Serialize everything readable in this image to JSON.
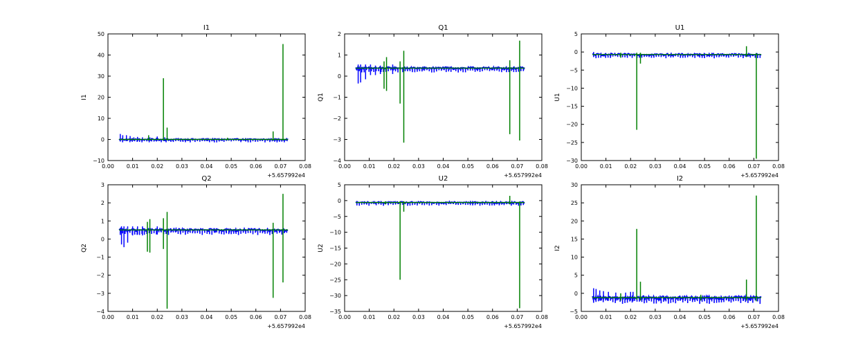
{
  "figure": {
    "background": "#ffffff",
    "colors": {
      "series_1": "#0000ff",
      "series_2": "#008000",
      "axes": "#000000"
    }
  },
  "chart_data": [
    {
      "type": "line",
      "title": "I1",
      "ylabel": "I1",
      "xlabel": "",
      "x_offset_label": "+5.657992e4",
      "xlim": [
        0.0,
        0.08
      ],
      "ylim": [
        -10,
        50
      ],
      "xticks": [
        "0.00",
        "0.01",
        "0.02",
        "0.03",
        "0.04",
        "0.05",
        "0.06",
        "0.07",
        "0.08"
      ],
      "yticks": [
        "−10",
        "0",
        "10",
        "20",
        "30",
        "40",
        "50"
      ],
      "grid": false,
      "series": [
        {
          "color": "#0000ff",
          "x": [
            0.0045,
            0.073
          ],
          "baseline": 0.0,
          "noise": 0.4,
          "spikes": [
            [
              0.005,
              2.6,
              -1.0
            ],
            [
              0.006,
              2.0,
              -0.8
            ],
            [
              0.0075,
              2.0,
              -0.8
            ],
            [
              0.009,
              1.6,
              -0.6
            ],
            [
              0.0105,
              1.0,
              -0.6
            ],
            [
              0.012,
              1.2,
              -0.8
            ],
            [
              0.014,
              1.0,
              -0.6
            ],
            [
              0.017,
              1.0,
              -0.6
            ],
            [
              0.02,
              1.4,
              -0.6
            ],
            [
              0.023,
              1.0,
              -0.8
            ]
          ]
        },
        {
          "color": "#008000",
          "x": [
            0.0045,
            0.073
          ],
          "baseline": 0.0,
          "spikes": [
            [
              0.0165,
              2.0,
              -0.5
            ],
            [
              0.0225,
              29.0,
              -0.5
            ],
            [
              0.024,
              5.6,
              -0.5
            ],
            [
              0.0485,
              0.8,
              -0.4
            ],
            [
              0.067,
              3.8,
              -0.5
            ],
            [
              0.071,
              45.2,
              -0.5
            ]
          ]
        }
      ]
    },
    {
      "type": "line",
      "title": "Q1",
      "ylabel": "Q1",
      "xlabel": "",
      "x_offset_label": "+5.657992e4",
      "xlim": [
        0.0,
        0.08
      ],
      "ylim": [
        -4,
        2
      ],
      "xticks": [
        "0.00",
        "0.01",
        "0.02",
        "0.03",
        "0.04",
        "0.05",
        "0.06",
        "0.07",
        "0.08"
      ],
      "yticks": [
        "−4",
        "−3",
        "−2",
        "−1",
        "0",
        "1",
        "2"
      ],
      "grid": false,
      "series": [
        {
          "color": "#0000ff",
          "x": [
            0.0045,
            0.073
          ],
          "baseline": 0.38,
          "noise": 0.06,
          "spikes": [
            [
              0.0055,
              0.55,
              -0.35
            ],
            [
              0.0065,
              0.55,
              -0.3
            ],
            [
              0.0085,
              0.55,
              -0.15
            ],
            [
              0.0105,
              0.55,
              0.05
            ],
            [
              0.0125,
              0.5,
              0.05
            ],
            [
              0.0145,
              0.5,
              0.1
            ],
            [
              0.0195,
              0.55,
              0.1
            ]
          ]
        },
        {
          "color": "#008000",
          "x": [
            0.0045,
            0.073
          ],
          "baseline": 0.38,
          "spikes": [
            [
              0.016,
              0.7,
              -0.6
            ],
            [
              0.017,
              0.9,
              -0.7
            ],
            [
              0.0225,
              0.7,
              -1.3
            ],
            [
              0.024,
              1.2,
              -3.15
            ],
            [
              0.067,
              0.75,
              -2.75
            ],
            [
              0.071,
              1.68,
              -3.05
            ]
          ]
        }
      ]
    },
    {
      "type": "line",
      "title": "U1",
      "ylabel": "U1",
      "xlabel": "",
      "x_offset_label": "+5.657992e4",
      "xlim": [
        0.0,
        0.08
      ],
      "ylim": [
        -30,
        5
      ],
      "xticks": [
        "0.00",
        "0.01",
        "0.02",
        "0.03",
        "0.04",
        "0.05",
        "0.06",
        "0.07",
        "0.08"
      ],
      "yticks": [
        "−30",
        "−25",
        "−20",
        "−15",
        "−10",
        "−5",
        "0",
        "5"
      ],
      "grid": false,
      "series": [
        {
          "color": "#0000ff",
          "x": [
            0.0045,
            0.073
          ],
          "baseline": -0.7,
          "noise": 0.3,
          "spikes": [
            [
              0.005,
              0.0,
              -1.4
            ],
            [
              0.008,
              -0.2,
              -1.2
            ],
            [
              0.012,
              -0.2,
              -1.2
            ]
          ]
        },
        {
          "color": "#008000",
          "x": [
            0.0045,
            0.073
          ],
          "baseline": -0.7,
          "spikes": [
            [
              0.016,
              -0.2,
              -1.6
            ],
            [
              0.0225,
              -0.2,
              -21.5
            ],
            [
              0.024,
              -0.2,
              -3.2
            ],
            [
              0.067,
              1.6,
              -1.4
            ],
            [
              0.071,
              -0.3,
              -29.5
            ]
          ]
        }
      ]
    },
    {
      "type": "line",
      "title": "Q2",
      "ylabel": "Q2",
      "xlabel": "",
      "x_offset_label": "+5.657992e4",
      "xlim": [
        0.0,
        0.08
      ],
      "ylim": [
        -4,
        3
      ],
      "xticks": [
        "0.00",
        "0.01",
        "0.02",
        "0.03",
        "0.04",
        "0.05",
        "0.06",
        "0.07",
        "0.08"
      ],
      "yticks": [
        "−4",
        "−3",
        "−2",
        "−1",
        "0",
        "1",
        "2",
        "3"
      ],
      "grid": false,
      "series": [
        {
          "color": "#0000ff",
          "x": [
            0.0045,
            0.073
          ],
          "baseline": 0.5,
          "noise": 0.08,
          "spikes": [
            [
              0.0055,
              0.7,
              -0.3
            ],
            [
              0.0065,
              0.7,
              -0.45
            ],
            [
              0.008,
              0.7,
              -0.2
            ],
            [
              0.01,
              0.7,
              0.2
            ],
            [
              0.012,
              0.7,
              0.25
            ],
            [
              0.014,
              0.7,
              0.2
            ],
            [
              0.02,
              0.7,
              0.25
            ]
          ]
        },
        {
          "color": "#008000",
          "x": [
            0.0045,
            0.073
          ],
          "baseline": 0.5,
          "spikes": [
            [
              0.016,
              0.95,
              -0.7
            ],
            [
              0.017,
              1.1,
              -0.75
            ],
            [
              0.0225,
              1.15,
              -0.55
            ],
            [
              0.024,
              1.5,
              -3.85
            ],
            [
              0.067,
              0.9,
              -3.25
            ],
            [
              0.071,
              2.5,
              -2.4
            ]
          ]
        }
      ]
    },
    {
      "type": "line",
      "title": "U2",
      "ylabel": "U2",
      "xlabel": "",
      "x_offset_label": "+5.657992e4",
      "xlim": [
        0.0,
        0.08
      ],
      "ylim": [
        -35,
        5
      ],
      "xticks": [
        "0.00",
        "0.01",
        "0.02",
        "0.03",
        "0.04",
        "0.05",
        "0.06",
        "0.07",
        "0.08"
      ],
      "yticks": [
        "−35",
        "−30",
        "−25",
        "−20",
        "−15",
        "−10",
        "−5",
        "0",
        "5"
      ],
      "grid": false,
      "series": [
        {
          "color": "#0000ff",
          "x": [
            0.0045,
            0.073
          ],
          "baseline": -0.6,
          "noise": 0.3,
          "spikes": [
            [
              0.005,
              -0.1,
              -1.2
            ],
            [
              0.008,
              -0.2,
              -1.0
            ]
          ]
        },
        {
          "color": "#008000",
          "x": [
            0.0045,
            0.073
          ],
          "baseline": -0.6,
          "spikes": [
            [
              0.0165,
              -0.2,
              -1.2
            ],
            [
              0.0225,
              -0.2,
              -25.0
            ],
            [
              0.024,
              -0.2,
              -3.5
            ],
            [
              0.067,
              1.5,
              -1.2
            ],
            [
              0.071,
              -0.3,
              -34.0
            ]
          ]
        }
      ]
    },
    {
      "type": "line",
      "title": "I2",
      "ylabel": "I2",
      "xlabel": "",
      "x_offset_label": "+5.657992e4",
      "xlim": [
        0.0,
        0.08
      ],
      "ylim": [
        -5,
        30
      ],
      "xticks": [
        "0.00",
        "0.01",
        "0.02",
        "0.03",
        "0.04",
        "0.05",
        "0.06",
        "0.07",
        "0.08"
      ],
      "yticks": [
        "−5",
        "0",
        "5",
        "10",
        "15",
        "20",
        "25",
        "30"
      ],
      "grid": false,
      "series": [
        {
          "color": "#0000ff",
          "x": [
            0.0045,
            0.073
          ],
          "baseline": -1.2,
          "noise": 0.5,
          "spikes": [
            [
              0.005,
              1.4,
              -2.2
            ],
            [
              0.006,
              1.2,
              -2.0
            ],
            [
              0.0075,
              0.8,
              -2.0
            ],
            [
              0.009,
              0.6,
              -1.8
            ],
            [
              0.011,
              0.4,
              -1.8
            ],
            [
              0.014,
              0.2,
              -1.8
            ],
            [
              0.018,
              0.2,
              -1.8
            ],
            [
              0.02,
              0.4,
              -2.0
            ],
            [
              0.021,
              0.4,
              -2.2
            ],
            [
              0.032,
              -0.6,
              -2.0
            ],
            [
              0.04,
              -0.6,
              -2.0
            ],
            [
              0.05,
              -0.6,
              -2.2
            ],
            [
              0.06,
              -0.6,
              -2.2
            ]
          ]
        },
        {
          "color": "#008000",
          "x": [
            0.0045,
            0.073
          ],
          "baseline": -1.2,
          "spikes": [
            [
              0.016,
              0.0,
              -2.0
            ],
            [
              0.0225,
              17.8,
              -1.8
            ],
            [
              0.024,
              3.2,
              -2.0
            ],
            [
              0.0485,
              -0.4,
              -2.0
            ],
            [
              0.067,
              3.8,
              -2.0
            ],
            [
              0.071,
              27.0,
              -2.2
            ]
          ]
        }
      ]
    }
  ]
}
